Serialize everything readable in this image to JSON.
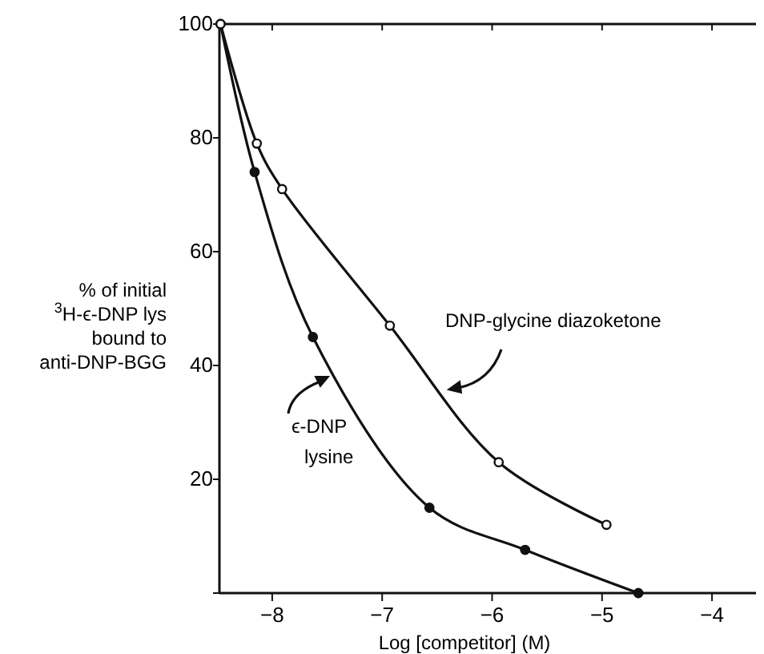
{
  "chart_data": {
    "type": "line",
    "xlabel": "Log [competitor]  (M)",
    "ylabel": "% of initial\n$^{3}$H-ϵ-DNP lys\nbound to\nanti-DNP-BGG",
    "xlim": [
      -8.48,
      -3.6
    ],
    "xticks": [
      -8,
      -7,
      -6,
      -5,
      -4
    ],
    "ylim": [
      0,
      100
    ],
    "yticks": [
      {
        "value": 0,
        "label": null
      },
      20,
      40,
      60,
      80,
      100
    ],
    "marker": "circle",
    "grid": false,
    "series": [
      {
        "name": "ϵ-DNP\nlysine",
        "color": "#111111",
        "x": [
          -8.47,
          -8.16,
          -7.63,
          -6.57,
          -5.7,
          -4.67
        ],
        "values": [
          100,
          74,
          45,
          15,
          7.6,
          0
        ]
      },
      {
        "name": "DNP-glycine diazoketone",
        "color": "#111111",
        "x": [
          -8.47,
          -8.14,
          -7.91,
          -6.93,
          -5.94,
          -4.96
        ],
        "values": [
          100,
          79,
          71,
          47,
          23,
          12
        ]
      }
    ]
  }
}
